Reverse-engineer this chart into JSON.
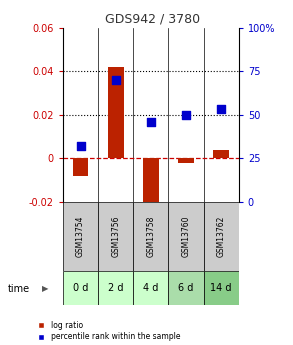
{
  "title": "GDS942 / 3780",
  "samples": [
    "GSM13754",
    "GSM13756",
    "GSM13758",
    "GSM13760",
    "GSM13762"
  ],
  "time_labels": [
    "0 d",
    "2 d",
    "4 d",
    "6 d",
    "14 d"
  ],
  "log_ratio": [
    -0.008,
    0.042,
    -0.023,
    -0.002,
    0.004
  ],
  "percentile_rank": [
    32,
    70,
    46,
    50,
    53
  ],
  "left_ylim": [
    -0.02,
    0.06
  ],
  "right_ylim": [
    0,
    100
  ],
  "left_yticks": [
    -0.02,
    0,
    0.02,
    0.04,
    0.06
  ],
  "right_yticks": [
    0,
    25,
    50,
    75,
    100
  ],
  "left_ytick_labels": [
    "-0.02",
    "0",
    "0.02",
    "0.04",
    "0.06"
  ],
  "right_ytick_labels": [
    "0",
    "25",
    "50",
    "75",
    "100%"
  ],
  "dotted_lines": [
    0.02,
    0.04
  ],
  "zero_line_color": "#cc0000",
  "bar_color": "#bb2200",
  "dot_color": "#0000cc",
  "background_color": "#ffffff",
  "gsm_box_color": "#cccccc",
  "time_colors": [
    "#ccffcc",
    "#ccffcc",
    "#ccffcc",
    "#aaddaa",
    "#88cc88"
  ],
  "title_color": "#333333",
  "left_label_color": "#cc0000",
  "right_label_color": "#0000cc",
  "bar_width": 0.45,
  "dot_size": 28
}
